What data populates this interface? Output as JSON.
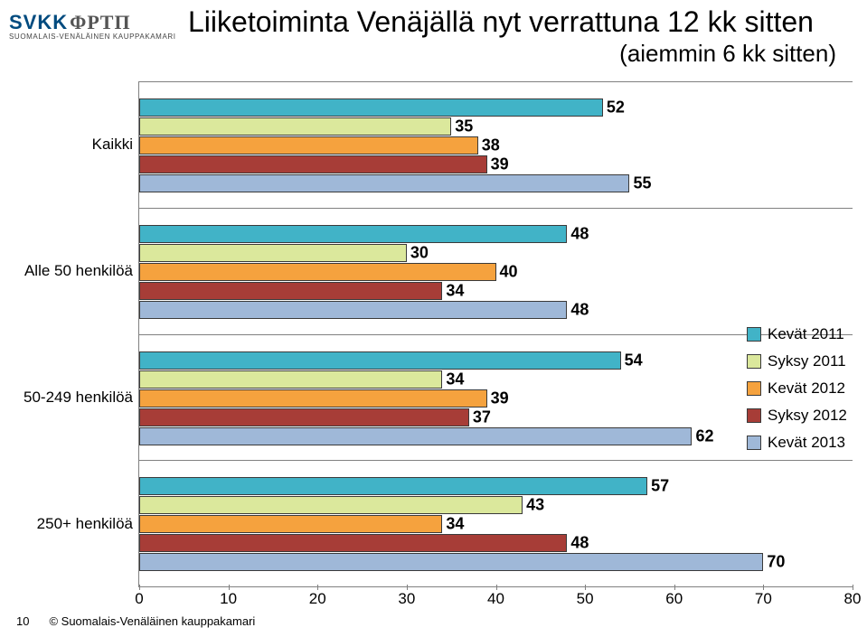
{
  "logo": {
    "main": "SVKK",
    "suffix": "ΦΡΤΠ",
    "subtitle": "SUOMALAIS-VENÄLÄINEN KAUPPAKAMARI"
  },
  "title": "Liiketoiminta Venäjällä nyt verrattuna 12 kk sitten",
  "subtitle": "(aiemmin 6 kk sitten)",
  "chart": {
    "type": "bar",
    "orientation": "horizontal",
    "xlim": [
      0,
      80
    ],
    "xtick_step": 10,
    "label_fontsize": 17,
    "value_fontsize": 18,
    "value_fontweight": "bold",
    "background_color": "#ffffff",
    "border_color": "#808080",
    "bar_border_color": "#3a3a3a",
    "series": [
      {
        "name": "Kevät 2011",
        "color": "#41b3c7"
      },
      {
        "name": "Syksy 2011",
        "color": "#dbe89c"
      },
      {
        "name": "Kevät 2012",
        "color": "#f5a23e"
      },
      {
        "name": "Syksy 2012",
        "color": "#a73d37"
      },
      {
        "name": "Kevät 2013",
        "color": "#9fb8d8"
      }
    ],
    "categories": [
      {
        "label": "Kaikki",
        "values": [
          52,
          35,
          38,
          39,
          55
        ]
      },
      {
        "label": "Alle 50 henkilöä",
        "values": [
          48,
          30,
          40,
          34,
          48
        ]
      },
      {
        "label": "50-249 henkilöä",
        "values": [
          54,
          34,
          39,
          37,
          62
        ]
      },
      {
        "label": "250+ henkilöä",
        "values": [
          57,
          43,
          34,
          48,
          70
        ]
      }
    ]
  },
  "footer": {
    "page": "10",
    "copyright": "© Suomalais-Venäläinen kauppakamari"
  }
}
